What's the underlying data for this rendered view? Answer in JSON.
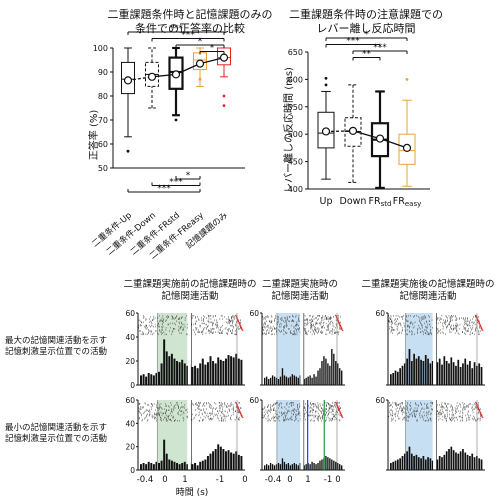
{
  "colors": {
    "box_black": "#111111",
    "easy_orange": "#e8a23a",
    "memory_red": "#e0261f",
    "sig_line": "#111111",
    "shade_green": "#cfe5cf",
    "shade_blue": "#c6dff2",
    "raster_red": "#e0261f",
    "event_blue": "#2b3fbf",
    "event_green": "#2a9a3a"
  },
  "chart_data": [
    {
      "type": "box",
      "title": "二重課題条件時と記憶課題のみの\n条件での正答率の比較",
      "ylabel": "正答率 (%)",
      "ylim": [
        50,
        100
      ],
      "yticks": [
        50,
        60,
        70,
        80,
        90,
        100
      ],
      "categories": [
        "二重条件-Up",
        "二重条件-Down",
        "二重条件-FRstd",
        "二重条件-FReasy",
        "記憶課題のみ"
      ],
      "boxes": [
        {
          "category": "二重条件-Up",
          "whisker_low": 63,
          "q1": 81,
          "median": 87,
          "q3": 94,
          "whisker_high": 100,
          "mean": 86.5,
          "outliers": [
            57
          ],
          "style": "solid",
          "color": "#111111"
        },
        {
          "category": "二重条件-Down",
          "whisker_low": 75,
          "q1": 84,
          "median": 89,
          "q3": 94,
          "whisker_high": 100,
          "mean": 88,
          "outliers": [],
          "style": "dashed",
          "color": "#111111"
        },
        {
          "category": "二重条件-FRstd",
          "whisker_low": 72,
          "q1": 83,
          "median": 90,
          "q3": 96,
          "whisker_high": 100,
          "mean": 89,
          "outliers": [
            70
          ],
          "style": "bold",
          "color": "#111111"
        },
        {
          "category": "二重条件-FReasy",
          "whisker_low": 84,
          "q1": 91,
          "median": 95,
          "q3": 98,
          "whisker_high": 100,
          "mean": 93.5,
          "outliers": [
            87
          ],
          "style": "solid",
          "color": "#e8a23a"
        },
        {
          "category": "記憶課題のみ",
          "whisker_low": 88,
          "q1": 93,
          "median": 96,
          "q3": 100,
          "whisker_high": 100,
          "mean": 96,
          "outliers": [
            80,
            76
          ],
          "style": "solid",
          "color": "#e0261f"
        }
      ],
      "mean_line_dashed_segment": [
        0,
        1
      ],
      "significance_top": [
        {
          "from": 0,
          "to": 4,
          "label": "***"
        },
        {
          "from": 1,
          "to": 4,
          "label": "***"
        },
        {
          "from": 2,
          "to": 4,
          "label": "*"
        },
        {
          "from": 3,
          "to": 4,
          "label": "*"
        }
      ],
      "significance_bottom": [
        {
          "from": 0,
          "to": 3,
          "label": "***"
        },
        {
          "from": 1,
          "to": 3,
          "label": "***"
        },
        {
          "from": 2,
          "to": 3,
          "label": "*"
        }
      ]
    },
    {
      "type": "box",
      "title": "二重課題条件時の注意課題での\nレバー離し反応時間",
      "ylabel": "レバー離しの反応時間 (ms)",
      "ylim": [
        400,
        650
      ],
      "yticks": [
        400,
        450,
        500,
        550,
        600,
        650
      ],
      "categories": [
        "Up",
        "Down",
        "FRstd",
        "FReasy"
      ],
      "category_labels": [
        {
          "main": "Up",
          "sub": ""
        },
        {
          "main": "Down",
          "sub": ""
        },
        {
          "main": "FR",
          "sub": "std"
        },
        {
          "main": "FR",
          "sub": "easy"
        }
      ],
      "boxes": [
        {
          "category": "Up",
          "whisker_low": 418,
          "q1": 475,
          "median": 502,
          "q3": 540,
          "whisker_high": 578,
          "mean": 505,
          "outliers": [
            590,
            602
          ],
          "style": "solid",
          "color": "#111111"
        },
        {
          "category": "Down",
          "whisker_low": 412,
          "q1": 478,
          "median": 505,
          "q3": 530,
          "whisker_high": 590,
          "mean": 506,
          "outliers": [],
          "style": "dashed",
          "color": "#111111"
        },
        {
          "category": "FRstd",
          "whisker_low": 402,
          "q1": 460,
          "median": 490,
          "q3": 520,
          "whisker_high": 578,
          "mean": 492,
          "outliers": [],
          "style": "bold",
          "color": "#111111"
        },
        {
          "category": "FReasy",
          "whisker_low": 405,
          "q1": 445,
          "median": 470,
          "q3": 500,
          "whisker_high": 562,
          "mean": 475,
          "outliers": [
            600
          ],
          "style": "solid",
          "color": "#e8a23a"
        }
      ],
      "mean_line_dashed_segment": [
        0,
        1
      ],
      "significance_top": [
        {
          "from": 0,
          "to": 3,
          "label": "*"
        },
        {
          "from": 0,
          "to": 2,
          "label": "***"
        },
        {
          "from": 1,
          "to": 3,
          "label": "***"
        },
        {
          "from": 1,
          "to": 2,
          "label": "**"
        }
      ]
    },
    {
      "type": "psth",
      "column_titles": [
        "二重課題実施前の記憶課題時の\n記憶関連活動",
        "二重課題実施時の\n記憶関連活動",
        "二重課題実施後の記憶課題時の\n記憶関連活動"
      ],
      "row_labels": [
        "最大の記憶関連活動を示す\n記憶刺激呈示位置での活動",
        "最小の記憶関連活動を示す\n記憶刺激呈示位置での活動"
      ],
      "ylim": [
        0,
        60
      ],
      "yticks": [
        0,
        20,
        40,
        60
      ],
      "xticks": [
        "-0.4",
        "0",
        "1",
        "-1",
        "0"
      ],
      "xlabel": "時間 (s)",
      "shade_colors": [
        "green",
        "blue",
        "blue"
      ],
      "rate_profiles": {
        "r0c0": [
          8,
          9,
          7,
          10,
          9,
          8,
          10,
          11,
          18,
          38,
          28,
          24,
          26,
          22,
          20,
          19,
          21,
          18,
          16,
          17,
          15,
          16,
          14,
          18,
          22,
          17,
          19,
          24,
          20,
          18,
          23,
          21,
          20,
          22,
          25,
          24,
          23,
          26,
          22,
          21
        ],
        "r0c1": [
          6,
          7,
          5,
          6,
          8,
          7,
          6,
          5,
          7,
          14,
          8,
          7,
          6,
          7,
          9,
          8,
          7,
          6,
          8,
          7,
          5,
          6,
          7,
          8,
          6,
          9,
          7,
          12,
          14,
          20,
          24,
          22,
          18,
          16,
          30,
          26,
          20,
          18,
          14,
          12
        ],
        "r0c2": [
          9,
          10,
          12,
          11,
          14,
          16,
          18,
          22,
          30,
          20,
          26,
          22,
          24,
          21,
          20,
          25,
          22,
          18,
          20,
          16,
          19,
          22,
          17,
          24,
          20,
          18,
          23,
          19,
          16,
          21,
          15,
          18,
          22,
          17,
          20,
          14,
          19,
          16,
          18,
          15
        ],
        "r1c0": [
          5,
          6,
          5,
          7,
          6,
          5,
          7,
          6,
          8,
          26,
          14,
          9,
          8,
          7,
          6,
          5,
          6,
          7,
          5,
          6,
          5,
          6,
          4,
          7,
          8,
          9,
          12,
          14,
          16,
          18,
          22,
          20,
          18,
          16,
          17,
          15,
          14,
          16,
          13,
          12
        ],
        "r1c1": [
          4,
          5,
          4,
          6,
          5,
          4,
          5,
          6,
          5,
          10,
          7,
          5,
          6,
          4,
          5,
          6,
          5,
          4,
          6,
          5,
          4,
          5,
          6,
          5,
          7,
          6,
          5,
          6,
          8,
          9,
          10,
          12,
          11,
          10,
          9,
          8,
          7,
          6,
          5,
          4
        ],
        "r1c2": [
          6,
          7,
          8,
          9,
          10,
          12,
          14,
          16,
          20,
          14,
          12,
          13,
          11,
          10,
          12,
          9,
          11,
          10,
          8,
          10,
          9,
          12,
          11,
          13,
          16,
          18,
          20,
          17,
          15,
          14,
          16,
          18,
          15,
          13,
          12,
          14,
          11,
          12,
          10,
          9
        ]
      }
    }
  ]
}
